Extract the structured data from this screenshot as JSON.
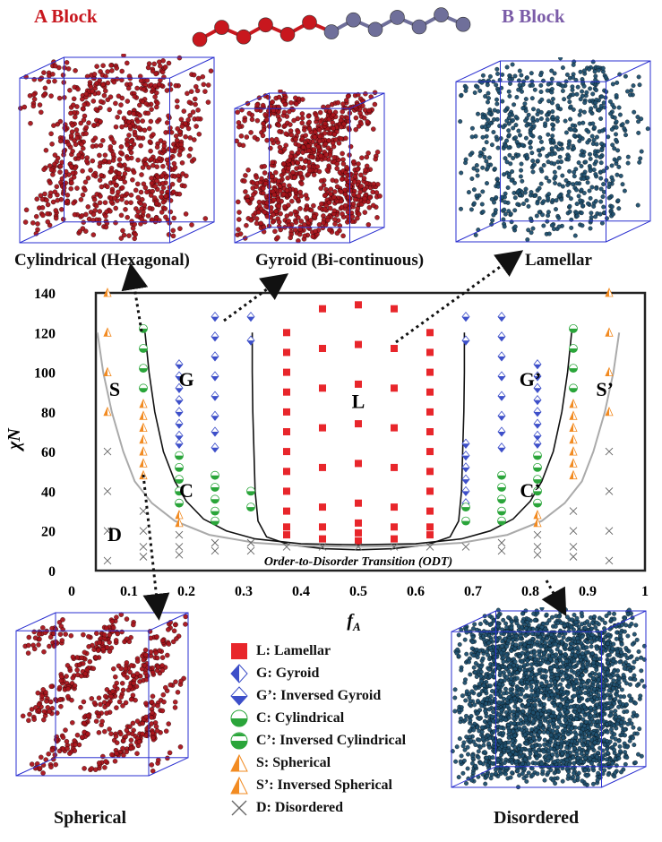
{
  "header": {
    "a_block": "A Block",
    "b_block": "B Block"
  },
  "snapshots": {
    "cylindrical": "Cylindrical (Hexagonal)",
    "gyroid": "Gyroid (Bi-continuous)",
    "lamellar": "Lamellar",
    "spherical": "Spherical",
    "disordered": "Disordered"
  },
  "colors": {
    "a_block": "#c8171e",
    "b_block": "#6f6f9a",
    "lamellar": "#e8262b",
    "gyroid": "#3d4fc9",
    "cylindrical": "#2aa53a",
    "spherical": "#f28b22",
    "disordered": "#666666",
    "snapshot_red": "#a8141b",
    "snapshot_blue": "#1f4f6e"
  },
  "chart_data": {
    "type": "scatter",
    "xlabel": "fA",
    "ylabel": "χN",
    "xlim": [
      0,
      1
    ],
    "ylim": [
      0,
      140
    ],
    "xticks": [
      "0",
      "0.1",
      "0.2",
      "0.3",
      "0.4",
      "0.5",
      "0.6",
      "0.7",
      "0.8",
      "0.9",
      "1"
    ],
    "yticks": [
      "0",
      "20",
      "40",
      "60",
      "80",
      "100",
      "120",
      "140"
    ],
    "grid": false,
    "region_labels": [
      {
        "text": "S",
        "x": 0.075,
        "y": 88
      },
      {
        "text": "G",
        "x": 0.2,
        "y": 93
      },
      {
        "text": "L",
        "x": 0.5,
        "y": 82
      },
      {
        "text": "G’",
        "x": 0.8,
        "y": 93
      },
      {
        "text": "S’",
        "x": 0.93,
        "y": 88
      },
      {
        "text": "C",
        "x": 0.2,
        "y": 37
      },
      {
        "text": "C’",
        "x": 0.8,
        "y": 37
      },
      {
        "text": "D",
        "x": 0.075,
        "y": 15
      }
    ],
    "odt_label": "Order-to-Disorder Transition (ODT)",
    "series": [
      {
        "name": "L: Lamellar",
        "marker": "square",
        "points": [
          [
            0.375,
            120
          ],
          [
            0.375,
            110
          ],
          [
            0.375,
            100
          ],
          [
            0.375,
            90
          ],
          [
            0.375,
            80
          ],
          [
            0.375,
            70
          ],
          [
            0.375,
            60
          ],
          [
            0.375,
            50
          ],
          [
            0.375,
            40
          ],
          [
            0.375,
            30
          ],
          [
            0.375,
            22
          ],
          [
            0.375,
            18
          ],
          [
            0.4375,
            132
          ],
          [
            0.4375,
            112
          ],
          [
            0.4375,
            92
          ],
          [
            0.4375,
            72
          ],
          [
            0.4375,
            52
          ],
          [
            0.4375,
            32
          ],
          [
            0.4375,
            22
          ],
          [
            0.4375,
            16
          ],
          [
            0.5,
            134
          ],
          [
            0.5,
            114
          ],
          [
            0.5,
            94
          ],
          [
            0.5,
            74
          ],
          [
            0.5,
            54
          ],
          [
            0.5,
            34
          ],
          [
            0.5,
            24
          ],
          [
            0.5,
            19
          ],
          [
            0.5,
            15
          ],
          [
            0.5625,
            132
          ],
          [
            0.5625,
            112
          ],
          [
            0.5625,
            92
          ],
          [
            0.5625,
            72
          ],
          [
            0.5625,
            52
          ],
          [
            0.5625,
            32
          ],
          [
            0.5625,
            22
          ],
          [
            0.5625,
            16
          ],
          [
            0.625,
            120
          ],
          [
            0.625,
            110
          ],
          [
            0.625,
            100
          ],
          [
            0.625,
            90
          ],
          [
            0.625,
            80
          ],
          [
            0.625,
            70
          ],
          [
            0.625,
            60
          ],
          [
            0.625,
            50
          ],
          [
            0.625,
            40
          ],
          [
            0.625,
            30
          ],
          [
            0.625,
            22
          ],
          [
            0.625,
            18
          ]
        ]
      },
      {
        "name": "G: Gyroid",
        "marker": "gyroid",
        "points": [
          [
            0.1875,
            104
          ],
          [
            0.1875,
            98
          ],
          [
            0.1875,
            92
          ],
          [
            0.1875,
            86
          ],
          [
            0.1875,
            80
          ],
          [
            0.1875,
            74
          ],
          [
            0.1875,
            68
          ],
          [
            0.1875,
            64
          ],
          [
            0.25,
            128
          ],
          [
            0.25,
            118
          ],
          [
            0.25,
            108
          ],
          [
            0.25,
            98
          ],
          [
            0.25,
            88
          ],
          [
            0.25,
            78
          ],
          [
            0.25,
            70
          ],
          [
            0.25,
            62
          ],
          [
            0.3125,
            128
          ],
          [
            0.3125,
            116
          ]
        ]
      },
      {
        "name": "G’: Inversed Gyroid",
        "marker": "gyroid",
        "points": [
          [
            0.6875,
            128
          ],
          [
            0.6875,
            116
          ],
          [
            0.75,
            128
          ],
          [
            0.75,
            118
          ],
          [
            0.75,
            108
          ],
          [
            0.75,
            98
          ],
          [
            0.75,
            88
          ],
          [
            0.75,
            78
          ],
          [
            0.75,
            70
          ],
          [
            0.75,
            62
          ],
          [
            0.8125,
            104
          ],
          [
            0.8125,
            98
          ],
          [
            0.8125,
            92
          ],
          [
            0.8125,
            86
          ],
          [
            0.8125,
            80
          ],
          [
            0.8125,
            74
          ],
          [
            0.8125,
            68
          ],
          [
            0.8125,
            64
          ],
          [
            0.6875,
            64
          ],
          [
            0.6875,
            58
          ],
          [
            0.6875,
            52
          ],
          [
            0.6875,
            46
          ],
          [
            0.6875,
            40
          ],
          [
            0.6875,
            34
          ]
        ]
      },
      {
        "name": "C: Cylindrical",
        "marker": "cylinder",
        "points": [
          [
            0.125,
            122
          ],
          [
            0.125,
            112
          ],
          [
            0.125,
            102
          ],
          [
            0.125,
            92
          ],
          [
            0.1875,
            58
          ],
          [
            0.1875,
            52
          ],
          [
            0.1875,
            46
          ],
          [
            0.1875,
            40
          ],
          [
            0.1875,
            34
          ],
          [
            0.25,
            48
          ],
          [
            0.25,
            42
          ],
          [
            0.25,
            36
          ],
          [
            0.25,
            30
          ],
          [
            0.25,
            25
          ],
          [
            0.3125,
            40
          ],
          [
            0.3125,
            32
          ]
        ]
      },
      {
        "name": "C’: Inversed Cylindrical",
        "marker": "cylinder",
        "points": [
          [
            0.875,
            122
          ],
          [
            0.875,
            112
          ],
          [
            0.875,
            102
          ],
          [
            0.875,
            92
          ],
          [
            0.8125,
            58
          ],
          [
            0.8125,
            52
          ],
          [
            0.8125,
            46
          ],
          [
            0.8125,
            40
          ],
          [
            0.8125,
            34
          ],
          [
            0.75,
            48
          ],
          [
            0.75,
            42
          ],
          [
            0.75,
            36
          ],
          [
            0.75,
            30
          ],
          [
            0.75,
            25
          ],
          [
            0.6875,
            32
          ],
          [
            0.6875,
            25
          ]
        ]
      },
      {
        "name": "S: Spherical",
        "marker": "triangle",
        "points": [
          [
            0.0625,
            140
          ],
          [
            0.0625,
            120
          ],
          [
            0.0625,
            100
          ],
          [
            0.0625,
            80
          ],
          [
            0.125,
            84
          ],
          [
            0.125,
            78
          ],
          [
            0.125,
            72
          ],
          [
            0.125,
            66
          ],
          [
            0.125,
            60
          ],
          [
            0.125,
            54
          ],
          [
            0.125,
            48
          ],
          [
            0.1875,
            28
          ],
          [
            0.1875,
            24
          ]
        ]
      },
      {
        "name": "S’: Inversed Spherical",
        "marker": "triangle",
        "points": [
          [
            0.9375,
            140
          ],
          [
            0.9375,
            120
          ],
          [
            0.9375,
            100
          ],
          [
            0.9375,
            80
          ],
          [
            0.875,
            84
          ],
          [
            0.875,
            78
          ],
          [
            0.875,
            72
          ],
          [
            0.875,
            66
          ],
          [
            0.875,
            60
          ],
          [
            0.875,
            54
          ],
          [
            0.875,
            48
          ],
          [
            0.8125,
            28
          ],
          [
            0.8125,
            24
          ]
        ]
      },
      {
        "name": "D: Disordered",
        "marker": "cross",
        "points": [
          [
            0.0625,
            60
          ],
          [
            0.0625,
            40
          ],
          [
            0.0625,
            20
          ],
          [
            0.0625,
            5
          ],
          [
            0.125,
            30
          ],
          [
            0.125,
            20
          ],
          [
            0.125,
            12
          ],
          [
            0.125,
            7
          ],
          [
            0.1875,
            18
          ],
          [
            0.1875,
            12
          ],
          [
            0.1875,
            8
          ],
          [
            0.25,
            14
          ],
          [
            0.25,
            10
          ],
          [
            0.3125,
            14
          ],
          [
            0.3125,
            10
          ],
          [
            0.375,
            12
          ],
          [
            0.4375,
            12
          ],
          [
            0.5,
            12
          ],
          [
            0.5625,
            12
          ],
          [
            0.625,
            12
          ],
          [
            0.6875,
            12
          ],
          [
            0.75,
            14
          ],
          [
            0.75,
            10
          ],
          [
            0.8125,
            18
          ],
          [
            0.8125,
            12
          ],
          [
            0.8125,
            8
          ],
          [
            0.875,
            30
          ],
          [
            0.875,
            20
          ],
          [
            0.875,
            12
          ],
          [
            0.875,
            7
          ],
          [
            0.9375,
            60
          ],
          [
            0.9375,
            40
          ],
          [
            0.9375,
            20
          ],
          [
            0.9375,
            5
          ]
        ]
      }
    ],
    "curves": [
      {
        "name": "lamellar-boundary-left",
        "points": [
          [
            0.315,
            120
          ],
          [
            0.315,
            100
          ],
          [
            0.316,
            80
          ],
          [
            0.318,
            60
          ],
          [
            0.32,
            40
          ],
          [
            0.325,
            25
          ],
          [
            0.34,
            17
          ],
          [
            0.38,
            13
          ],
          [
            0.44,
            11
          ],
          [
            0.5,
            10.5
          ]
        ]
      },
      {
        "name": "lamellar-boundary-right",
        "points": [
          [
            0.5,
            10.5
          ],
          [
            0.56,
            11
          ],
          [
            0.62,
            13
          ],
          [
            0.66,
            17
          ],
          [
            0.675,
            25
          ],
          [
            0.68,
            40
          ],
          [
            0.682,
            60
          ],
          [
            0.684,
            80
          ],
          [
            0.685,
            100
          ],
          [
            0.685,
            120
          ]
        ]
      },
      {
        "name": "sphere-boundary-left",
        "points": [
          [
            0.128,
            120
          ],
          [
            0.135,
            100
          ],
          [
            0.145,
            80
          ],
          [
            0.16,
            60
          ],
          [
            0.18,
            45
          ],
          [
            0.2,
            35
          ],
          [
            0.23,
            26
          ],
          [
            0.27,
            20
          ],
          [
            0.32,
            16
          ],
          [
            0.4,
            13.5
          ],
          [
            0.5,
            13
          ]
        ]
      },
      {
        "name": "sphere-boundary-right",
        "points": [
          [
            0.5,
            13
          ],
          [
            0.6,
            13.5
          ],
          [
            0.68,
            16
          ],
          [
            0.73,
            20
          ],
          [
            0.77,
            26
          ],
          [
            0.8,
            35
          ],
          [
            0.82,
            45
          ],
          [
            0.84,
            60
          ],
          [
            0.855,
            80
          ],
          [
            0.865,
            100
          ],
          [
            0.872,
            120
          ]
        ]
      },
      {
        "name": "odt-left",
        "points": [
          [
            0.045,
            120
          ],
          [
            0.055,
            100
          ],
          [
            0.07,
            80
          ],
          [
            0.09,
            60
          ],
          [
            0.11,
            45
          ],
          [
            0.14,
            34
          ],
          [
            0.18,
            25
          ],
          [
            0.24,
            18
          ],
          [
            0.32,
            14
          ],
          [
            0.4,
            12.5
          ],
          [
            0.5,
            12
          ]
        ]
      },
      {
        "name": "odt-right",
        "points": [
          [
            0.5,
            12
          ],
          [
            0.6,
            12.5
          ],
          [
            0.68,
            14
          ],
          [
            0.76,
            18
          ],
          [
            0.82,
            25
          ],
          [
            0.86,
            34
          ],
          [
            0.89,
            45
          ],
          [
            0.91,
            60
          ],
          [
            0.93,
            80
          ],
          [
            0.945,
            100
          ],
          [
            0.955,
            120
          ]
        ]
      }
    ]
  },
  "legend": [
    {
      "label": "L: Lamellar",
      "marker": "square"
    },
    {
      "label": "G: Gyroid",
      "marker": "gyroid"
    },
    {
      "label": "G’: Inversed Gyroid",
      "marker": "gyroid-inv"
    },
    {
      "label": "C: Cylindrical",
      "marker": "cylinder"
    },
    {
      "label": "C’: Inversed Cylindrical",
      "marker": "cylinder-inv"
    },
    {
      "label": "S: Spherical",
      "marker": "triangle"
    },
    {
      "label": "S’: Inversed Spherical",
      "marker": "triangle-inv"
    },
    {
      "label": "D: Disordered",
      "marker": "cross"
    }
  ]
}
